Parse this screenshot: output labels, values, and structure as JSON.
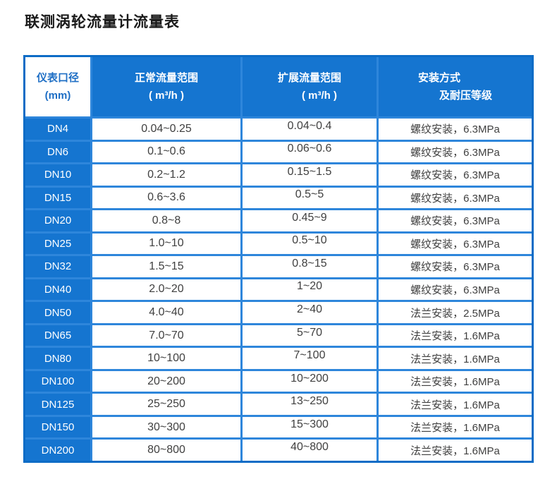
{
  "page": {
    "title": "联测涡轮流量计流量表"
  },
  "colors": {
    "grid_blue": "#2e86db",
    "cell_blue": "#1575d0",
    "border_blue": "#0d6cc6",
    "header_corner_text_blue": "#1f6fc5",
    "data_text": "#404040",
    "title_text": "#1a1a1a"
  },
  "table": {
    "headers": [
      {
        "line1": "仪表口径",
        "line2": "(mm)"
      },
      {
        "line1": "正常流量范围",
        "line2": "( m³/h )"
      },
      {
        "line1": "扩展流量范围",
        "line2": "( m³/h )"
      },
      {
        "line1": "安装方式",
        "line2": "及耐压等级"
      }
    ],
    "rows": [
      {
        "dn": "DN4",
        "normal": "0.04~0.25",
        "extended": "0.04~0.4",
        "install": "螺纹安装，6.3MPa"
      },
      {
        "dn": "DN6",
        "normal": "0.1~0.6",
        "extended": "0.06~0.6",
        "install": "螺纹安装，6.3MPa"
      },
      {
        "dn": "DN10",
        "normal": "0.2~1.2",
        "extended": "0.15~1.5",
        "install": "螺纹安装，6.3MPa"
      },
      {
        "dn": "DN15",
        "normal": "0.6~3.6",
        "extended": "0.5~5",
        "install": "螺纹安装，6.3MPa"
      },
      {
        "dn": "DN20",
        "normal": "0.8~8",
        "extended": "0.45~9",
        "install": "螺纹安装，6.3MPa"
      },
      {
        "dn": "DN25",
        "normal": "1.0~10",
        "extended": "0.5~10",
        "install": "螺纹安装，6.3MPa"
      },
      {
        "dn": "DN32",
        "normal": "1.5~15",
        "extended": "0.8~15",
        "install": "螺纹安装，6.3MPa"
      },
      {
        "dn": "DN40",
        "normal": "2.0~20",
        "extended": "1~20",
        "install": "螺纹安装，6.3MPa"
      },
      {
        "dn": "DN50",
        "normal": "4.0~40",
        "extended": "2~40",
        "install": "法兰安装，2.5MPa"
      },
      {
        "dn": "DN65",
        "normal": "7.0~70",
        "extended": "5~70",
        "install": "法兰安装，1.6MPa"
      },
      {
        "dn": "DN80",
        "normal": "10~100",
        "extended": "7~100",
        "install": "法兰安装，1.6MPa"
      },
      {
        "dn": "DN100",
        "normal": "20~200",
        "extended": "10~200",
        "install": "法兰安装，1.6MPa"
      },
      {
        "dn": "DN125",
        "normal": "25~250",
        "extended": "13~250",
        "install": "法兰安装，1.6MPa"
      },
      {
        "dn": "DN150",
        "normal": "30~300",
        "extended": "15~300",
        "install": "法兰安装，1.6MPa"
      },
      {
        "dn": "DN200",
        "normal": "80~800",
        "extended": "40~800",
        "install": "法兰安装，1.6MPa"
      }
    ]
  }
}
